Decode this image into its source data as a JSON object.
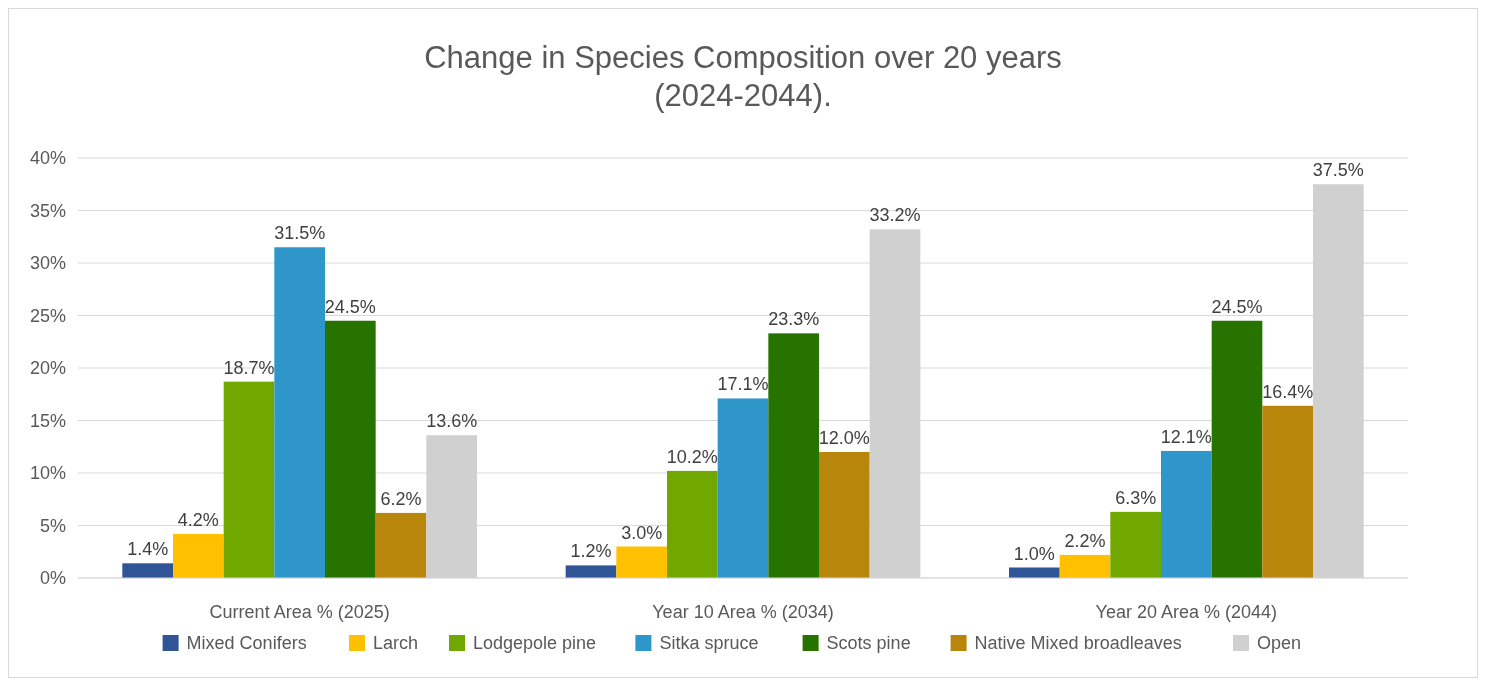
{
  "chart_data": {
    "type": "bar",
    "title": "Change in Species Composition over 20 years\n(2024-2044).",
    "categories": [
      "Current Area % (2025)",
      "Year 10 Area % (2034)",
      "Year 20 Area % (2044)"
    ],
    "series": [
      {
        "name": "Mixed Conifers",
        "color": "#2f5597",
        "values": [
          1.4,
          1.2,
          1.0
        ]
      },
      {
        "name": "Larch",
        "color": "#ffc000",
        "values": [
          4.2,
          3.0,
          2.2
        ]
      },
      {
        "name": "Lodgepole pine",
        "color": "#70a800",
        "values": [
          18.7,
          10.2,
          6.3
        ]
      },
      {
        "name": "Sitka spruce",
        "color": "#2e96c8",
        "values": [
          31.5,
          17.1,
          12.1
        ]
      },
      {
        "name": "Scots pine",
        "color": "#267300",
        "values": [
          24.5,
          23.3,
          24.5
        ]
      },
      {
        "name": "Native Mixed broadleaves",
        "color": "#b8860b",
        "values": [
          6.2,
          12.0,
          16.4
        ]
      },
      {
        "name": "Open",
        "color": "#d0d0d0",
        "values": [
          13.6,
          33.2,
          37.5
        ]
      }
    ],
    "value_labels": [
      [
        "1.4%",
        "1.2%",
        "1.0%"
      ],
      [
        "4.2%",
        "3.0%",
        "2.2%"
      ],
      [
        "18.7%",
        "10.2%",
        "6.3%"
      ],
      [
        "31.5%",
        "17.1%",
        "12.1%"
      ],
      [
        "24.5%",
        "23.3%",
        "24.5%"
      ],
      [
        "6.2%",
        "12.0%",
        "16.4%"
      ],
      [
        "13.6%",
        "33.2%",
        "37.5%"
      ]
    ],
    "ylim": [
      0,
      40
    ],
    "yticks": [
      {
        "value": 0,
        "label": "0%"
      },
      {
        "value": 5,
        "label": "5%"
      },
      {
        "value": 10,
        "label": "10%"
      },
      {
        "value": 15,
        "label": "15%"
      },
      {
        "value": 20,
        "label": "20%"
      },
      {
        "value": 25,
        "label": "25%"
      },
      {
        "value": 30,
        "label": "30%"
      },
      {
        "value": 35,
        "label": "35%"
      },
      {
        "value": 40,
        "label": "40%"
      }
    ],
    "grid": "y",
    "legend": "bottom"
  }
}
